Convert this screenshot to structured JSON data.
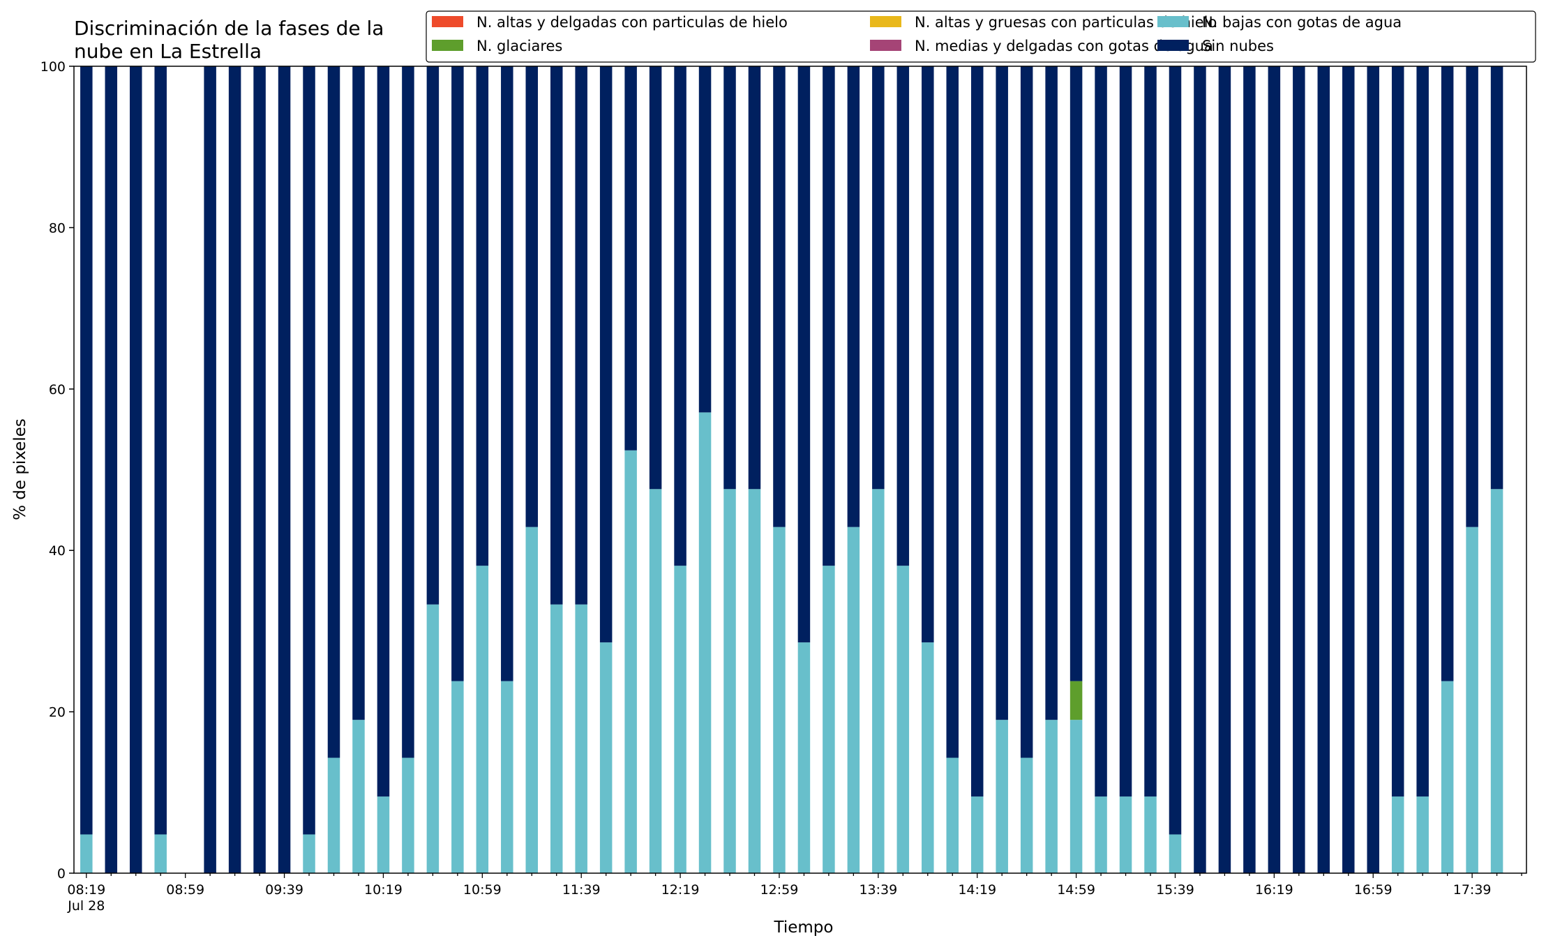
{
  "chart_data": {
    "type": "bar",
    "stacked": true,
    "title": "Discriminación de la fases de la\nnube en La Estrella",
    "xlabel": "Tiempo",
    "ylabel": "% de pixeles",
    "ylim": [
      0,
      100
    ],
    "yticks": [
      0,
      20,
      40,
      60,
      80,
      100
    ],
    "grid": false,
    "legend_position": "top-right",
    "x_tick_labels": [
      "08:19\nJul 28",
      "08:59",
      "09:39",
      "10:19",
      "10:59",
      "11:39",
      "12:19",
      "12:59",
      "13:39",
      "14:19",
      "14:59",
      "15:39",
      "16:19",
      "16:59",
      "17:39"
    ],
    "categories": [
      "08:19",
      "08:29",
      "08:39",
      "08:49",
      "08:59",
      "09:09",
      "09:19",
      "09:29",
      "09:39",
      "09:49",
      "09:59",
      "10:09",
      "10:19",
      "10:29",
      "10:39",
      "10:49",
      "10:59",
      "11:09",
      "11:19",
      "11:29",
      "11:39",
      "11:49",
      "11:59",
      "12:09",
      "12:19",
      "12:29",
      "12:39",
      "12:49",
      "12:59",
      "13:09",
      "13:19",
      "13:29",
      "13:39",
      "13:49",
      "13:59",
      "14:09",
      "14:19",
      "14:29",
      "14:39",
      "14:49",
      "14:59",
      "15:09",
      "15:19",
      "15:29",
      "15:39",
      "15:49",
      "15:59",
      "16:09",
      "16:19",
      "16:29",
      "16:39",
      "16:49",
      "16:59",
      "17:09",
      "17:19",
      "17:29",
      "17:39",
      "17:49"
    ],
    "series": [
      {
        "name": "N. altas y delgadas con particulas de hielo",
        "color": "#ee4b2b",
        "values": [
          0,
          0,
          0,
          0,
          0,
          0,
          0,
          0,
          0,
          0,
          0,
          0,
          0,
          0,
          0,
          0,
          0,
          0,
          0,
          0,
          0,
          0,
          0,
          0,
          0,
          0,
          0,
          0,
          0,
          0,
          0,
          0,
          0,
          0,
          0,
          0,
          0,
          0,
          0,
          0,
          0,
          0,
          0,
          0,
          0,
          0,
          0,
          0,
          0,
          0,
          0,
          0,
          0,
          0,
          0,
          0,
          0,
          0
        ]
      },
      {
        "name": "N. altas y gruesas con particulas de hielo",
        "color": "#e9b81b",
        "values": [
          0,
          0,
          0,
          0,
          0,
          0,
          0,
          0,
          0,
          0,
          0,
          0,
          0,
          0,
          0,
          0,
          0,
          0,
          0,
          0,
          0,
          0,
          0,
          0,
          0,
          0,
          0,
          0,
          0,
          0,
          0,
          0,
          0,
          0,
          0,
          0,
          0,
          0,
          0,
          0,
          0,
          0,
          0,
          0,
          0,
          0,
          0,
          0,
          0,
          0,
          0,
          0,
          0,
          0,
          0,
          0,
          0,
          0
        ]
      },
      {
        "name": "N. bajas con gotas de agua",
        "color": "#68bfcb",
        "values": [
          4.8,
          0,
          0,
          4.8,
          null,
          0,
          0,
          0,
          0,
          4.8,
          14.3,
          19.0,
          9.5,
          14.3,
          33.3,
          23.8,
          38.1,
          23.8,
          42.9,
          33.3,
          33.3,
          28.6,
          52.4,
          47.6,
          38.1,
          57.1,
          47.6,
          47.6,
          42.9,
          28.6,
          38.1,
          42.9,
          47.6,
          38.1,
          28.6,
          14.3,
          9.5,
          19.0,
          14.3,
          19.0,
          19.0,
          9.5,
          9.5,
          9.5,
          4.8,
          0,
          0,
          0,
          0,
          0,
          0,
          0,
          0,
          9.5,
          9.5,
          23.8,
          42.9,
          47.6
        ]
      },
      {
        "name": "N. glaciares",
        "color": "#5e9e2c",
        "values": [
          0,
          0,
          0,
          0,
          null,
          0,
          0,
          0,
          0,
          0,
          0,
          0,
          0,
          0,
          0,
          0,
          0,
          0,
          0,
          0,
          0,
          0,
          0,
          0,
          0,
          0,
          0,
          0,
          0,
          0,
          0,
          0,
          0,
          0,
          0,
          0,
          0,
          0,
          0,
          0,
          4.8,
          0,
          0,
          0,
          0,
          0,
          0,
          0,
          0,
          0,
          0,
          0,
          0,
          0,
          0,
          0,
          0,
          0
        ]
      },
      {
        "name": "N. medias y delgadas con gotas de agua",
        "color": "#a54476",
        "values": [
          0,
          0,
          0,
          0,
          null,
          0,
          0,
          0,
          0,
          0,
          0,
          0,
          0,
          0,
          0,
          0,
          0,
          0,
          0,
          0,
          0,
          0,
          0,
          0,
          0,
          0,
          0,
          0,
          0,
          0,
          0,
          0,
          0,
          0,
          0,
          0,
          0,
          0,
          0,
          0,
          0,
          0,
          0,
          0,
          0,
          0,
          0,
          0,
          0,
          0,
          0,
          0,
          0,
          0,
          0,
          0,
          0,
          0
        ]
      },
      {
        "name": "Sin nubes",
        "color": "#00205f",
        "values": [
          95.2,
          100,
          100,
          95.2,
          null,
          100,
          100,
          100,
          100,
          95.2,
          85.7,
          81.0,
          90.5,
          85.7,
          66.7,
          76.2,
          61.9,
          76.2,
          57.1,
          66.7,
          66.7,
          71.4,
          47.6,
          52.4,
          61.9,
          42.9,
          52.4,
          52.4,
          57.1,
          71.4,
          61.9,
          57.1,
          52.4,
          61.9,
          71.4,
          85.7,
          90.5,
          81.0,
          85.7,
          81.0,
          76.2,
          90.5,
          90.5,
          90.5,
          95.2,
          100,
          100,
          100,
          100,
          100,
          100,
          100,
          100,
          90.5,
          90.5,
          76.2,
          57.1,
          52.4
        ]
      }
    ]
  }
}
